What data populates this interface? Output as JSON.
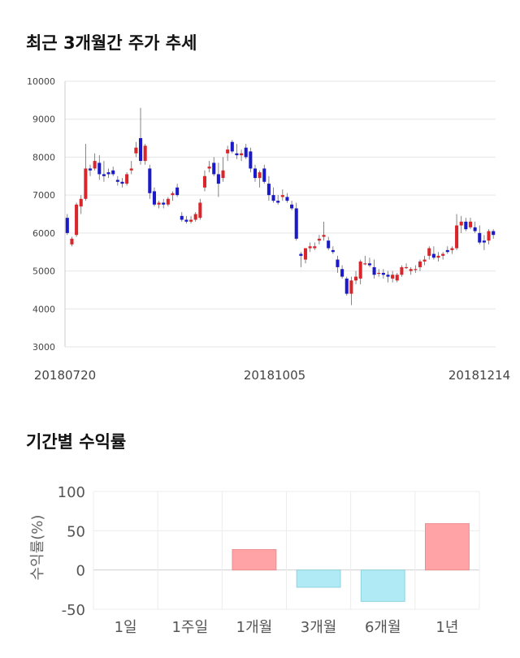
{
  "titles": {
    "price_trend": "최근 3개월간 주가 추세",
    "period_returns": "기간별 수익률"
  },
  "colors": {
    "up": "#d9262b",
    "down": "#1a1ac8",
    "positive_bar": "#ffa3a6",
    "negative_bar": "#b0eaf4",
    "grid": "#e6e6e6"
  },
  "chart_data": [
    {
      "type": "candlestick",
      "ylim": [
        3000,
        10000
      ],
      "y_ticks": [
        3000,
        4000,
        5000,
        6000,
        7000,
        8000,
        9000,
        10000
      ],
      "x_tick_labels": [
        "20180720",
        "20181005",
        "20181214"
      ],
      "grid": "horizontal",
      "candles": [
        [
          6400,
          6500,
          5950,
          6000
        ],
        [
          5700,
          5900,
          5650,
          5850
        ],
        [
          5950,
          6800,
          5900,
          6750
        ],
        [
          6700,
          7000,
          6500,
          6900
        ],
        [
          6900,
          8350,
          6850,
          7700
        ],
        [
          7700,
          7800,
          7500,
          7650
        ],
        [
          7700,
          8100,
          7650,
          7900
        ],
        [
          7850,
          8050,
          7400,
          7550
        ],
        [
          7550,
          7900,
          7350,
          7500
        ],
        [
          7600,
          7700,
          7450,
          7550
        ],
        [
          7650,
          7750,
          7500,
          7550
        ],
        [
          7400,
          7500,
          7250,
          7350
        ],
        [
          7350,
          7450,
          7200,
          7300
        ],
        [
          7300,
          7600,
          7250,
          7550
        ],
        [
          7650,
          7900,
          7550,
          7700
        ],
        [
          8100,
          8400,
          8000,
          8250
        ],
        [
          8500,
          9300,
          7800,
          7900
        ],
        [
          7900,
          8350,
          7800,
          8300
        ],
        [
          7700,
          7800,
          6900,
          7050
        ],
        [
          7100,
          7200,
          6700,
          6750
        ],
        [
          6750,
          6850,
          6650,
          6800
        ],
        [
          6800,
          6900,
          6650,
          6750
        ],
        [
          6750,
          6950,
          6700,
          6900
        ],
        [
          7000,
          7100,
          6850,
          7050
        ],
        [
          7200,
          7300,
          6950,
          7000
        ],
        [
          6450,
          6550,
          6300,
          6350
        ],
        [
          6350,
          6450,
          6250,
          6300
        ],
        [
          6300,
          6450,
          6250,
          6350
        ],
        [
          6350,
          6550,
          6300,
          6500
        ],
        [
          6400,
          6900,
          6350,
          6800
        ],
        [
          7200,
          7650,
          7100,
          7500
        ],
        [
          7700,
          7900,
          7600,
          7750
        ],
        [
          7850,
          8000,
          7500,
          7550
        ],
        [
          7550,
          7850,
          6950,
          7300
        ],
        [
          7450,
          8000,
          7350,
          7650
        ],
        [
          8100,
          8300,
          7900,
          8200
        ],
        [
          8400,
          8450,
          8100,
          8150
        ],
        [
          8100,
          8350,
          7950,
          8050
        ],
        [
          8050,
          8200,
          7900,
          8100
        ],
        [
          8250,
          8350,
          7950,
          8000
        ],
        [
          8150,
          8250,
          7600,
          7700
        ],
        [
          7700,
          7800,
          7350,
          7450
        ],
        [
          7450,
          7650,
          7200,
          7600
        ],
        [
          7700,
          7800,
          7300,
          7350
        ],
        [
          7300,
          7500,
          6850,
          7000
        ],
        [
          7000,
          7200,
          6800,
          6850
        ],
        [
          6850,
          7000,
          6750,
          6800
        ],
        [
          6950,
          7150,
          6850,
          7000
        ],
        [
          6950,
          7050,
          6800,
          6850
        ],
        [
          6750,
          6850,
          6600,
          6650
        ],
        [
          6650,
          6800,
          5800,
          5850
        ],
        [
          5450,
          5500,
          5100,
          5400
        ],
        [
          5300,
          5600,
          5200,
          5600
        ],
        [
          5600,
          5750,
          5500,
          5650
        ],
        [
          5600,
          5750,
          5550,
          5650
        ],
        [
          5800,
          5950,
          5700,
          5850
        ],
        [
          5900,
          6300,
          5800,
          5950
        ],
        [
          5800,
          5900,
          5550,
          5600
        ],
        [
          5550,
          5650,
          5450,
          5500
        ],
        [
          5300,
          5400,
          4950,
          5100
        ],
        [
          5050,
          5150,
          4800,
          4850
        ],
        [
          4800,
          4850,
          4350,
          4400
        ],
        [
          4400,
          4850,
          4100,
          4750
        ],
        [
          4750,
          5000,
          4650,
          4850
        ],
        [
          4800,
          5300,
          4650,
          5250
        ],
        [
          5200,
          5400,
          5150,
          5200
        ],
        [
          5200,
          5350,
          5100,
          5150
        ],
        [
          5100,
          5300,
          4800,
          4900
        ],
        [
          4950,
          5050,
          4850,
          4950
        ],
        [
          4950,
          5050,
          4800,
          4900
        ],
        [
          4900,
          5000,
          4700,
          4850
        ],
        [
          4800,
          5000,
          4700,
          4900
        ],
        [
          4750,
          4950,
          4700,
          4900
        ],
        [
          4900,
          5150,
          4850,
          5100
        ],
        [
          5100,
          5200,
          5050,
          5100
        ],
        [
          5000,
          5100,
          4900,
          5050
        ],
        [
          5050,
          5150,
          4950,
          5050
        ],
        [
          5100,
          5300,
          5000,
          5250
        ],
        [
          5250,
          5400,
          5150,
          5300
        ],
        [
          5400,
          5650,
          5300,
          5600
        ],
        [
          5450,
          5650,
          5300,
          5350
        ],
        [
          5350,
          5500,
          5250,
          5400
        ],
        [
          5400,
          5500,
          5300,
          5450
        ],
        [
          5550,
          5650,
          5450,
          5500
        ],
        [
          5550,
          5650,
          5450,
          5600
        ],
        [
          5600,
          6500,
          5550,
          6200
        ],
        [
          6200,
          6450,
          6000,
          6300
        ],
        [
          6300,
          6400,
          6050,
          6100
        ],
        [
          6150,
          6400,
          6100,
          6300
        ],
        [
          6150,
          6300,
          6000,
          6050
        ],
        [
          6000,
          6200,
          5700,
          5750
        ],
        [
          5800,
          5950,
          5550,
          5750
        ],
        [
          5800,
          6100,
          5700,
          6050
        ],
        [
          6050,
          6100,
          5850,
          5950
        ]
      ]
    },
    {
      "type": "bar",
      "categories": [
        "1일",
        "1주일",
        "1개월",
        "3개월",
        "6개월",
        "1년"
      ],
      "values": [
        0,
        0,
        26,
        -22,
        -40,
        59
      ],
      "ylabel": "수익률(%)",
      "ylim": [
        -50,
        100
      ],
      "y_ticks": [
        100,
        50,
        0,
        -50
      ]
    }
  ]
}
